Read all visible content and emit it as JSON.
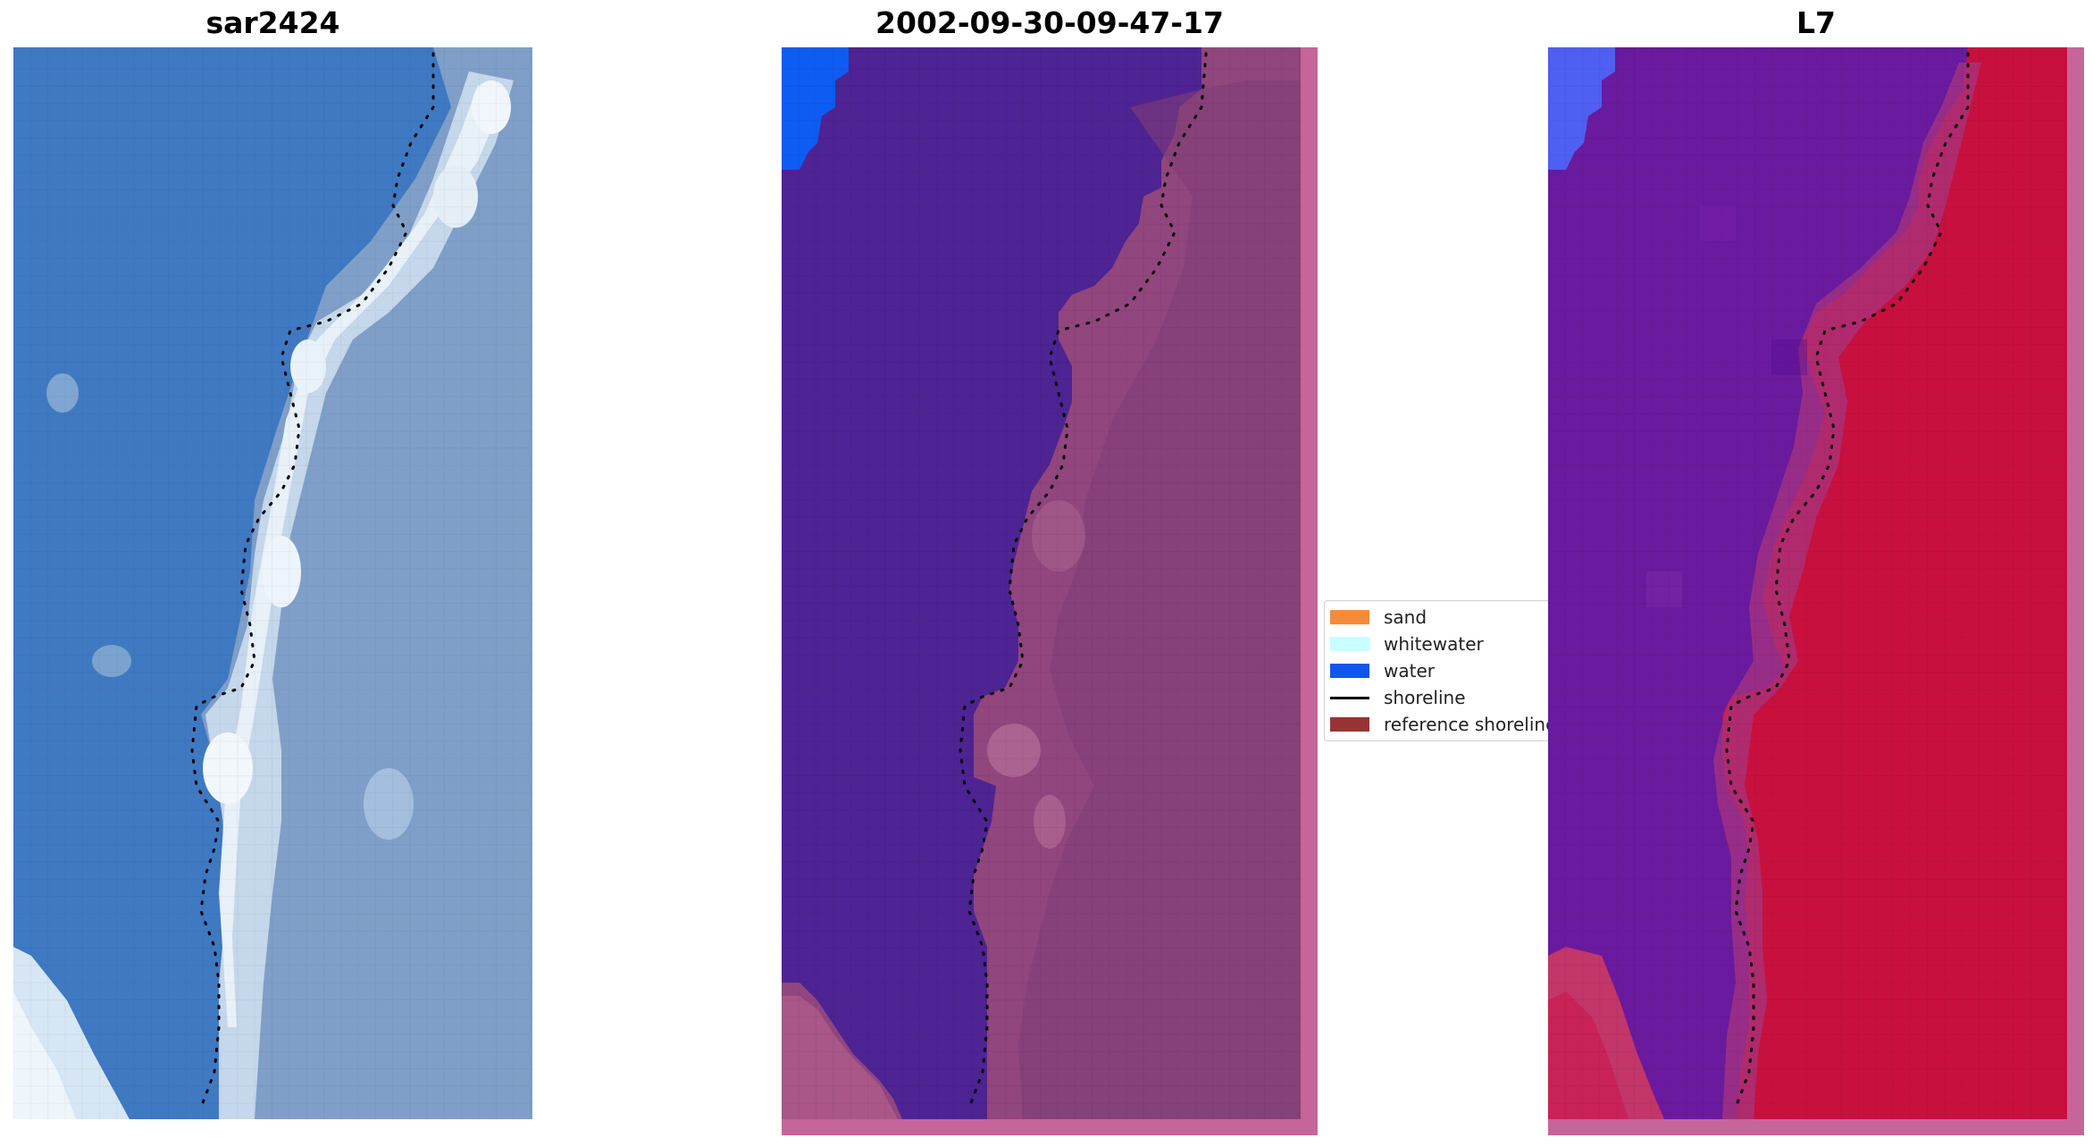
{
  "panels": {
    "rgb_title": "sar2424",
    "classified_title": "2002-09-30-09-47-17",
    "index_title": "L7"
  },
  "legend": {
    "items": [
      {
        "label": "sand",
        "color": "#f58a3a",
        "kind": "patch"
      },
      {
        "label": "whitewater",
        "color": "#c8ffff",
        "kind": "patch"
      },
      {
        "label": "water",
        "color": "#1155ee",
        "kind": "patch"
      },
      {
        "label": "shoreline",
        "color": "#000000",
        "kind": "line"
      },
      {
        "label": "reference shoreline",
        "color": "#993333",
        "kind": "patch"
      }
    ]
  },
  "colors": {
    "ocean_blue": "#3f79c2",
    "surf_white": "#dde9f4",
    "land_grey_blue": "#7f9fc8",
    "classified_water": "#4e2393",
    "classified_land": "#91467e",
    "classified_edge": "#c7649a",
    "index_water": "#6a1a9e",
    "index_land": "#c8103f",
    "shoreline_dots": "#000000"
  }
}
